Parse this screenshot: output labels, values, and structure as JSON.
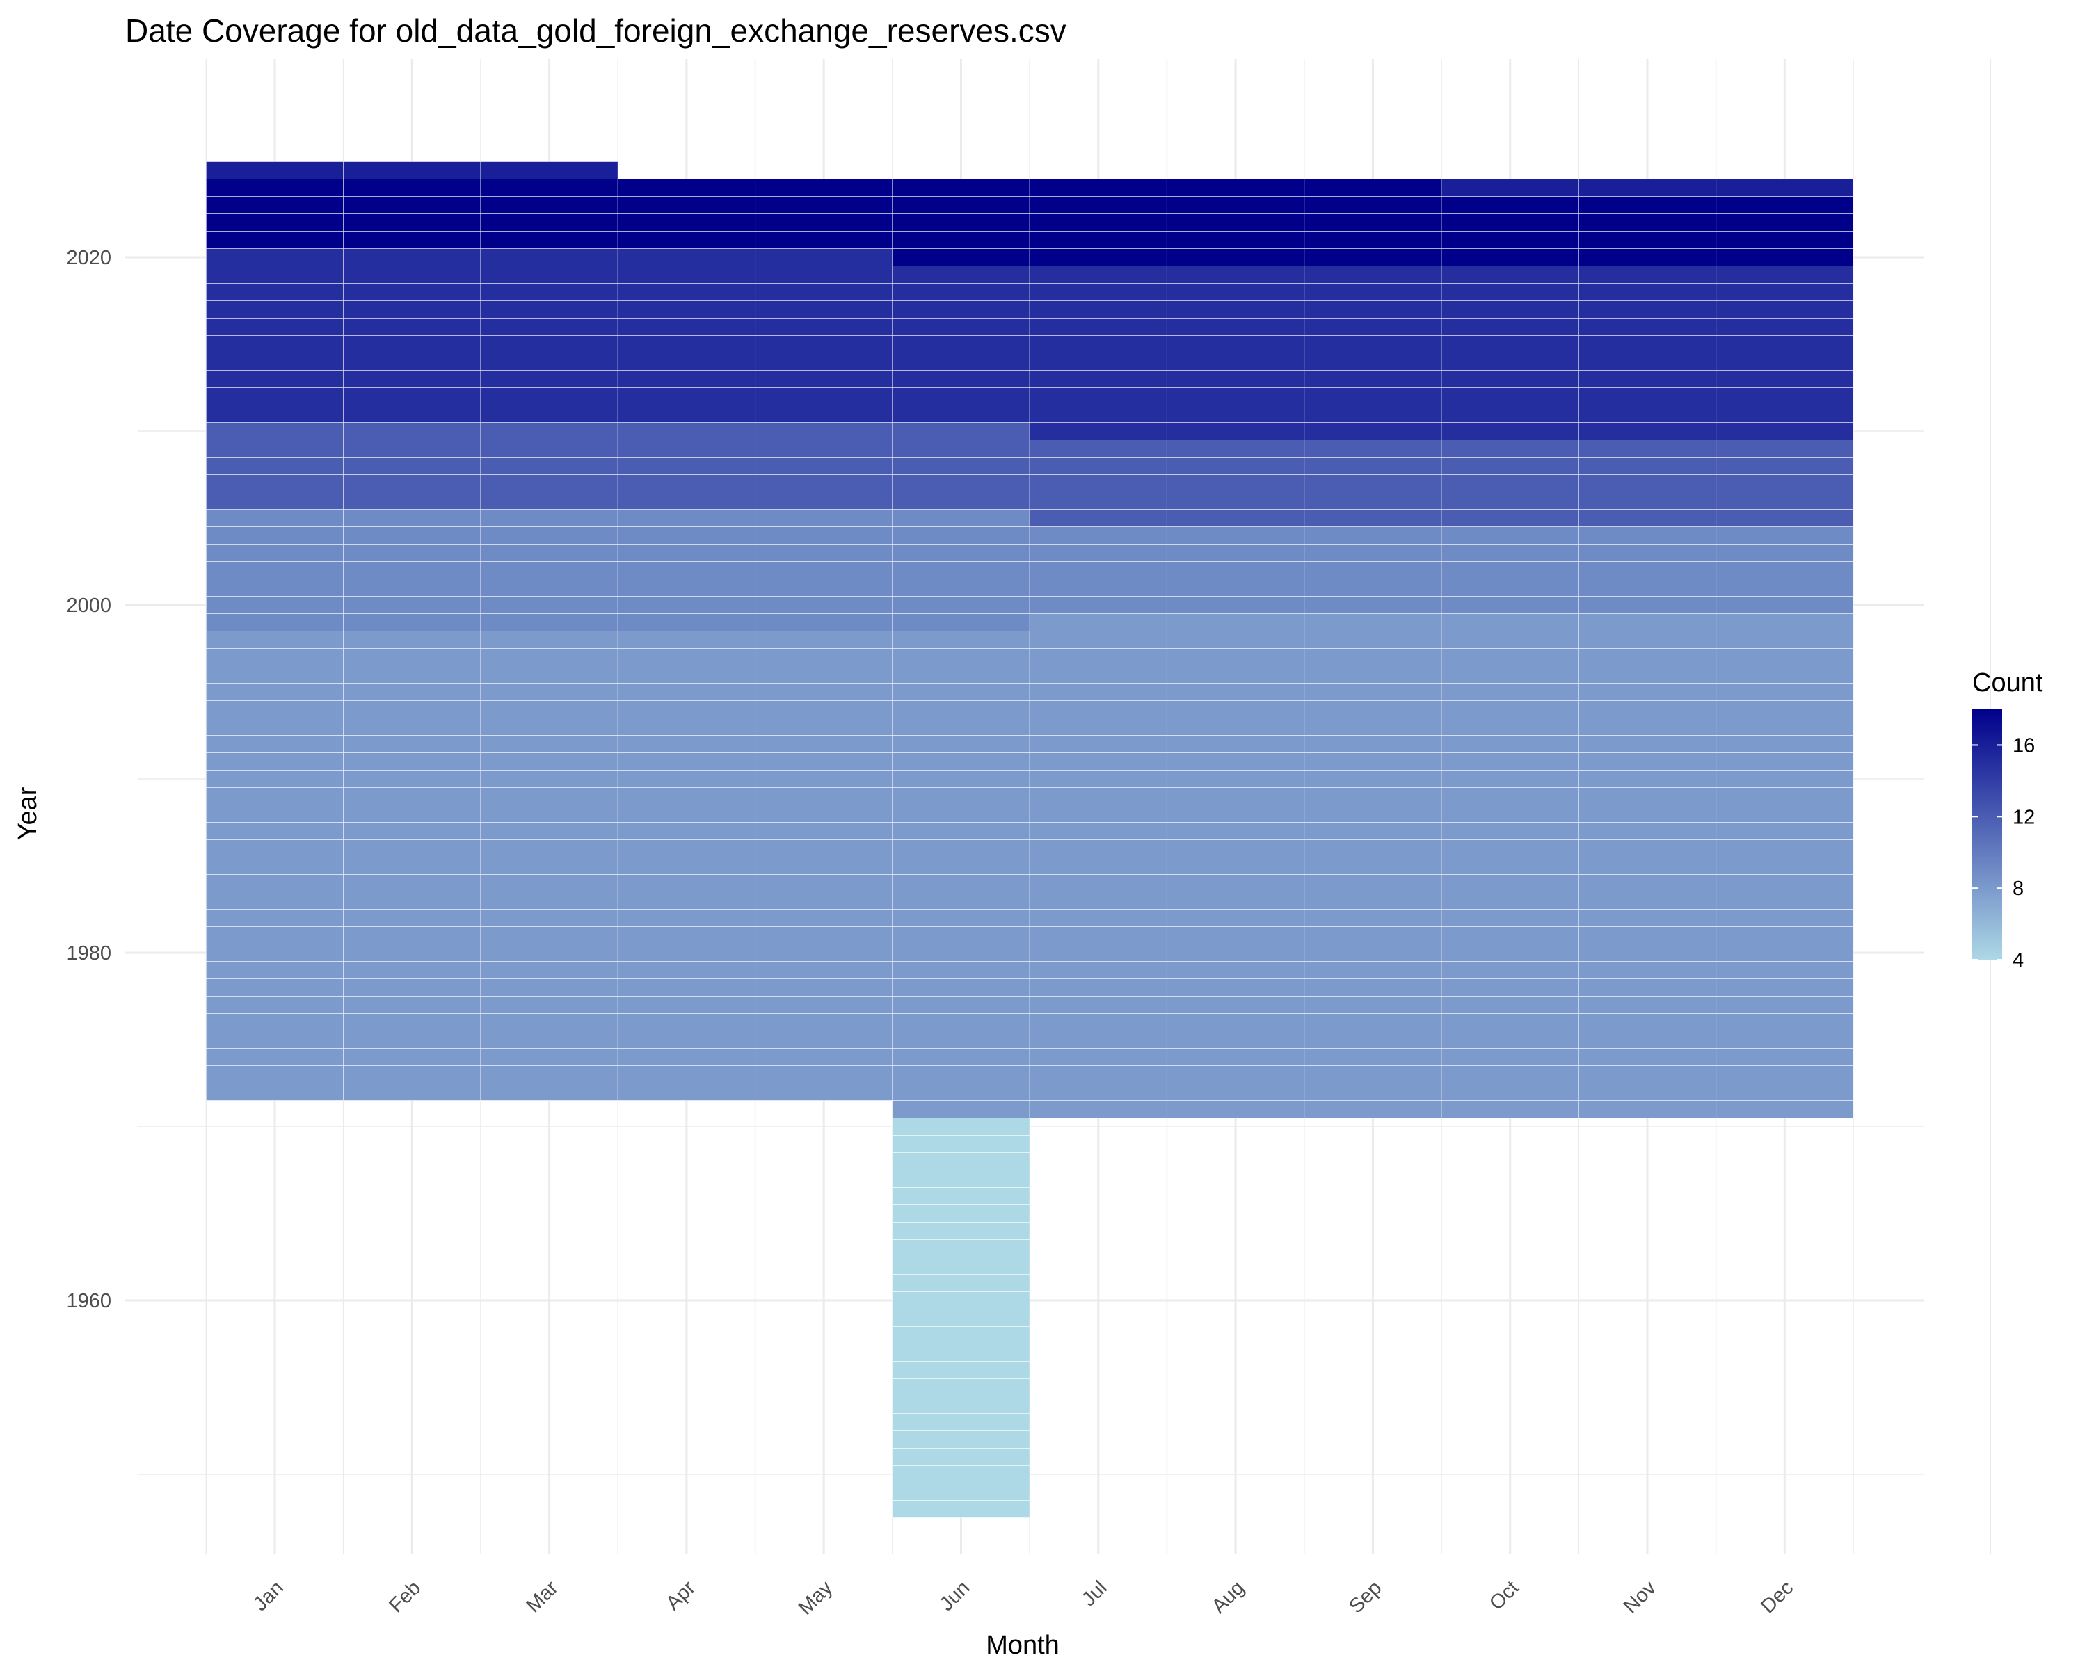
{
  "chart_data": {
    "type": "heatmap",
    "title": "Date Coverage for old_data_gold_foreign_exchange_reserves.csv",
    "xlabel": "Month",
    "ylabel": "Year",
    "categories": [
      "Jan",
      "Feb",
      "Mar",
      "Apr",
      "May",
      "Jun",
      "Jul",
      "Aug",
      "Sep",
      "Oct",
      "Nov",
      "Dec"
    ],
    "y_ticks": [
      1960,
      1980,
      2000,
      2020
    ],
    "ylim": [
      1945,
      2027
    ],
    "legend": {
      "title": "Count",
      "ticks": [
        4,
        8,
        12,
        16
      ],
      "range": [
        4,
        18
      ],
      "low_color": "#add8e6",
      "high_color": "#00008b",
      "placement": "right"
    },
    "cell_border_color": "#ffffff",
    "grid": true,
    "blocks": [
      {
        "months": [
          "Jan",
          "Feb",
          "Mar",
          "Apr",
          "May"
        ],
        "years": [
          1972,
          1998
        ],
        "count": 8
      },
      {
        "months": [
          "Jun"
        ],
        "years": [
          1948,
          1970
        ],
        "count": 4
      },
      {
        "months": [
          "Jun",
          "Jul",
          "Aug",
          "Sep",
          "Oct",
          "Nov",
          "Dec"
        ],
        "years": [
          1971,
          1998
        ],
        "count": 8
      },
      {
        "months": [
          "Jul",
          "Aug",
          "Sep",
          "Oct",
          "Nov",
          "Dec"
        ],
        "years": [
          1999,
          1999
        ],
        "count": 8
      },
      {
        "months": [
          "Jan",
          "Feb",
          "Mar",
          "Apr",
          "May"
        ],
        "years": [
          1999,
          2005
        ],
        "count": 9
      },
      {
        "months": [
          "Jun"
        ],
        "years": [
          1999,
          2005
        ],
        "count": 9
      },
      {
        "months": [
          "Jul",
          "Aug",
          "Sep",
          "Oct",
          "Nov",
          "Dec"
        ],
        "years": [
          2000,
          2004
        ],
        "count": 9
      },
      {
        "months": [
          "Jan",
          "Feb",
          "Mar",
          "Apr",
          "May",
          "Jun"
        ],
        "years": [
          2006,
          2010
        ],
        "count": 12
      },
      {
        "months": [
          "Jul",
          "Aug",
          "Sep",
          "Oct",
          "Nov",
          "Dec"
        ],
        "years": [
          2005,
          2009
        ],
        "count": 12
      },
      {
        "months": [
          "Jan",
          "Feb",
          "Mar",
          "Apr",
          "May",
          "Jun"
        ],
        "years": [
          2011,
          2019
        ],
        "count": 15
      },
      {
        "months": [
          "Jul",
          "Aug",
          "Sep",
          "Oct",
          "Nov",
          "Dec"
        ],
        "years": [
          2010,
          2019
        ],
        "count": 15
      },
      {
        "months": [
          "Jan",
          "Feb",
          "Mar",
          "Apr",
          "May"
        ],
        "years": [
          2020,
          2020
        ],
        "count": 15
      },
      {
        "months": [
          "Jun",
          "Jul",
          "Aug",
          "Sep",
          "Oct",
          "Nov",
          "Dec"
        ],
        "years": [
          2020,
          2020
        ],
        "count": 18
      },
      {
        "months": [
          "Jan",
          "Feb",
          "Mar",
          "Apr",
          "May",
          "Jun",
          "Jul",
          "Aug",
          "Sep",
          "Oct",
          "Nov",
          "Dec"
        ],
        "years": [
          2021,
          2023
        ],
        "count": 18
      },
      {
        "months": [
          "Jan",
          "Feb",
          "Mar",
          "Apr",
          "May",
          "Jun",
          "Jul",
          "Aug",
          "Sep"
        ],
        "years": [
          2024,
          2024
        ],
        "count": 18
      },
      {
        "months": [
          "Oct",
          "Nov",
          "Dec"
        ],
        "years": [
          2024,
          2024
        ],
        "count": 16
      },
      {
        "months": [
          "Jan",
          "Feb",
          "Mar"
        ],
        "years": [
          2025,
          2025
        ],
        "count": 16
      }
    ]
  }
}
